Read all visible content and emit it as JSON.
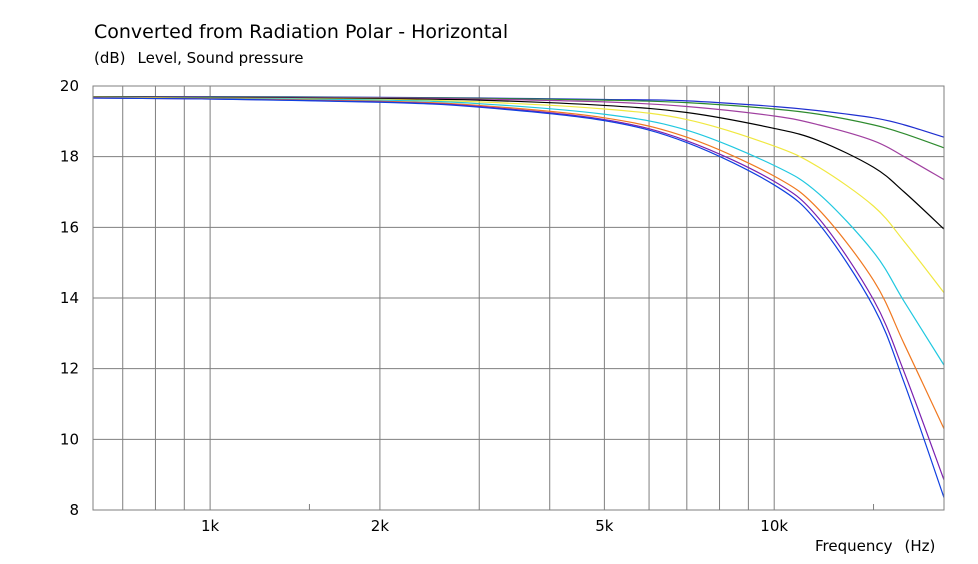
{
  "title": "Converted from Radiation Polar - Horizontal",
  "subtitle": {
    "unit": "(dB)",
    "label": "Level, Sound pressure"
  },
  "x_axis": {
    "label": "Frequency",
    "unit": "(Hz)"
  },
  "chart_data": {
    "type": "line",
    "title": "Converted from Radiation Polar - Horizontal",
    "ylabel": "Level, Sound pressure",
    "yunit": "(dB)",
    "xlabel": "Frequency",
    "xunit": "(Hz)",
    "xscale": "log",
    "xlim": [
      620,
      20000
    ],
    "ylim": [
      8,
      20
    ],
    "grid": true,
    "y_ticks": [
      8,
      10,
      12,
      14,
      16,
      18,
      20
    ],
    "y_tick_labels": [
      "8",
      "10",
      "12",
      "14",
      "16",
      "18",
      "20"
    ],
    "x_ticks": [
      1000,
      2000,
      5000,
      10000
    ],
    "x_tick_labels": [
      "1k",
      "2k",
      "5k",
      "10k"
    ],
    "x_gridlines": [
      700,
      800,
      900,
      1000,
      2000,
      3000,
      4000,
      5000,
      6000,
      7000,
      8000,
      9000,
      10000
    ],
    "x_minor_ticks": [
      1500,
      15000
    ],
    "series": [
      {
        "color": "#1f2fd0",
        "x": [
          620,
          1000,
          2000,
          3000,
          5000,
          7000,
          10000,
          12000,
          15000,
          17000,
          20000
        ],
        "y": [
          19.7,
          19.7,
          19.68,
          19.66,
          19.62,
          19.58,
          19.42,
          19.3,
          19.1,
          18.9,
          18.55
        ]
      },
      {
        "color": "#2e8b2e",
        "x": [
          620,
          1000,
          2000,
          3000,
          5000,
          7000,
          10000,
          12000,
          15000,
          17000,
          20000
        ],
        "y": [
          19.7,
          19.69,
          19.67,
          19.65,
          19.6,
          19.53,
          19.35,
          19.2,
          18.9,
          18.65,
          18.25
        ]
      },
      {
        "color": "#a040a0",
        "x": [
          620,
          1000,
          2000,
          3000,
          5000,
          7000,
          10000,
          12000,
          15000,
          17000,
          20000
        ],
        "y": [
          19.69,
          19.68,
          19.66,
          19.63,
          19.55,
          19.42,
          19.15,
          18.9,
          18.45,
          18.0,
          17.35
        ]
      },
      {
        "color": "#000000",
        "x": [
          620,
          1000,
          2000,
          3000,
          5000,
          7000,
          10000,
          12000,
          15000,
          17000,
          20000
        ],
        "y": [
          19.68,
          19.67,
          19.64,
          19.6,
          19.45,
          19.25,
          18.8,
          18.45,
          17.7,
          17.0,
          15.95
        ]
      },
      {
        "color": "#f0e840",
        "x": [
          620,
          1000,
          2000,
          3000,
          5000,
          7000,
          10000,
          12000,
          15000,
          17000,
          20000
        ],
        "y": [
          19.68,
          19.66,
          19.62,
          19.55,
          19.35,
          19.05,
          18.3,
          17.7,
          16.6,
          15.6,
          14.15
        ]
      },
      {
        "color": "#20c8e0",
        "x": [
          620,
          1000,
          2000,
          3000,
          5000,
          7000,
          10000,
          12000,
          15000,
          17000,
          20000
        ],
        "y": [
          19.67,
          19.65,
          19.6,
          19.5,
          19.2,
          18.75,
          17.75,
          16.95,
          15.3,
          13.9,
          12.1
        ]
      },
      {
        "color": "#f07820",
        "x": [
          620,
          1000,
          2000,
          3000,
          5000,
          7000,
          10000,
          12000,
          15000,
          17000,
          20000
        ],
        "y": [
          19.67,
          19.64,
          19.57,
          19.45,
          19.1,
          18.55,
          17.45,
          16.5,
          14.5,
          12.7,
          10.3
        ]
      },
      {
        "color": "#7a1fb0",
        "x": [
          620,
          1000,
          2000,
          3000,
          5000,
          7000,
          10000,
          12000,
          15000,
          17000,
          20000
        ],
        "y": [
          19.66,
          19.63,
          19.55,
          19.42,
          19.05,
          18.45,
          17.3,
          16.25,
          13.95,
          11.9,
          8.85
        ]
      },
      {
        "color": "#1040e0",
        "x": [
          620,
          1000,
          2000,
          3000,
          5000,
          7000,
          10000,
          12000,
          15000,
          17000,
          20000
        ],
        "y": [
          19.66,
          19.63,
          19.54,
          19.4,
          19.02,
          18.4,
          17.2,
          16.1,
          13.75,
          11.6,
          8.35
        ]
      }
    ]
  }
}
